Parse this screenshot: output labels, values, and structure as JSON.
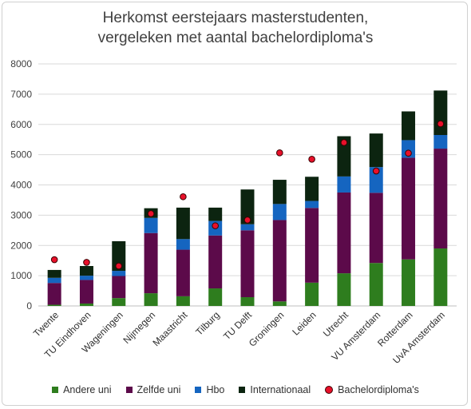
{
  "chart_data": {
    "type": "bar",
    "stacked": true,
    "title_line1": "Herkomst eerstejaars masterstudenten,",
    "title_line2": "vergeleken met aantal bachelordiploma's",
    "categories": [
      "Twente",
      "TU Eindhoven",
      "Wageningen",
      "Nijmegen",
      "Maastricht",
      "Tilburg",
      "TU Delft",
      "Groningen",
      "Leiden",
      "Utrecht",
      "VU Amsterdam",
      "Rotterdam",
      "UvA Amsterdam"
    ],
    "ylim": [
      0,
      8000
    ],
    "yticks": [
      "0",
      "1000",
      "2000",
      "3000",
      "4000",
      "5000",
      "6000",
      "7000",
      "8000"
    ],
    "grid": true,
    "legend_position": "bottom",
    "series": [
      {
        "name": "Andere uni",
        "color": "#2e7d1e",
        "values": [
          40,
          80,
          260,
          420,
          320,
          580,
          290,
          150,
          770,
          1080,
          1420,
          1540,
          1900
        ]
      },
      {
        "name": "Zelfde uni",
        "color": "#5c0a4a",
        "values": [
          720,
          780,
          730,
          1990,
          1540,
          1750,
          2210,
          2690,
          2470,
          2670,
          2320,
          3360,
          3300
        ]
      },
      {
        "name": "Hbo",
        "color": "#1565c0",
        "values": [
          170,
          140,
          170,
          500,
          350,
          480,
          200,
          530,
          230,
          530,
          850,
          580,
          450
        ]
      },
      {
        "name": "Internationaal",
        "color": "#0c2410",
        "values": [
          260,
          320,
          980,
          320,
          1040,
          440,
          1150,
          800,
          800,
          1330,
          1110,
          950,
          1470
        ]
      }
    ],
    "markers": {
      "name": "Bachelordiploma's",
      "color": "#e8102a",
      "values": [
        1530,
        1440,
        1320,
        3050,
        3610,
        2650,
        2840,
        5060,
        4850,
        5400,
        4460,
        5050,
        6020
      ]
    }
  }
}
